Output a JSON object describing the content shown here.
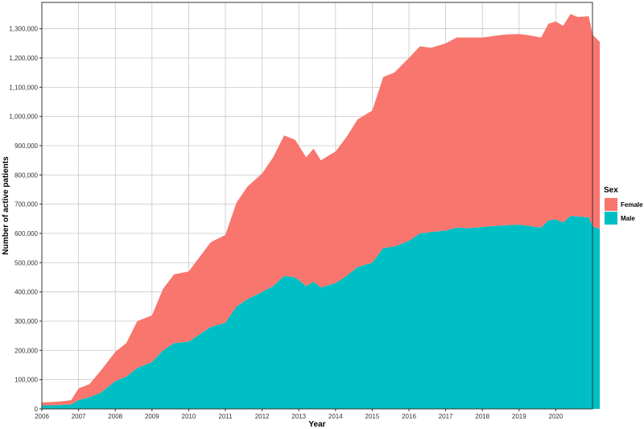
{
  "chart_data": {
    "type": "area",
    "stacked": true,
    "xlabel": "Year",
    "ylabel": "Number of active patients",
    "xlim": [
      2006,
      2021
    ],
    "ylim": [
      0,
      1390000
    ],
    "x_ticks": [
      2006,
      2007,
      2008,
      2009,
      2010,
      2011,
      2012,
      2013,
      2014,
      2015,
      2016,
      2017,
      2018,
      2019,
      2020
    ],
    "y_ticks": [
      0,
      100000,
      200000,
      300000,
      400000,
      500000,
      600000,
      700000,
      800000,
      900000,
      1000000,
      1100000,
      1200000,
      1300000
    ],
    "y_tick_labels": [
      "0",
      "100,000",
      "200,000",
      "300,000",
      "400,000",
      "500,000",
      "600,000",
      "700,000",
      "800,000",
      "900,000",
      "1,000,000",
      "1,100,000",
      "1,200,000",
      "1,300,000"
    ],
    "grid": true,
    "legend": {
      "title": "Sex",
      "position": "right"
    },
    "series": [
      {
        "name": "Male",
        "color": "#00BFC4",
        "points": [
          [
            2006.0,
            12000
          ],
          [
            2006.5,
            13000
          ],
          [
            2006.8,
            15000
          ],
          [
            2007.0,
            30000
          ],
          [
            2007.3,
            40000
          ],
          [
            2007.6,
            55000
          ],
          [
            2008.0,
            95000
          ],
          [
            2008.3,
            110000
          ],
          [
            2008.6,
            140000
          ],
          [
            2009.0,
            160000
          ],
          [
            2009.3,
            200000
          ],
          [
            2009.6,
            225000
          ],
          [
            2010.0,
            230000
          ],
          [
            2010.3,
            255000
          ],
          [
            2010.6,
            280000
          ],
          [
            2011.0,
            295000
          ],
          [
            2011.3,
            350000
          ],
          [
            2011.6,
            375000
          ],
          [
            2012.0,
            400000
          ],
          [
            2012.3,
            420000
          ],
          [
            2012.6,
            455000
          ],
          [
            2012.9,
            450000
          ],
          [
            2013.2,
            420000
          ],
          [
            2013.4,
            435000
          ],
          [
            2013.6,
            415000
          ],
          [
            2014.0,
            430000
          ],
          [
            2014.3,
            455000
          ],
          [
            2014.6,
            485000
          ],
          [
            2015.0,
            500000
          ],
          [
            2015.3,
            550000
          ],
          [
            2015.6,
            555000
          ],
          [
            2016.0,
            575000
          ],
          [
            2016.3,
            600000
          ],
          [
            2016.6,
            605000
          ],
          [
            2017.0,
            610000
          ],
          [
            2017.3,
            620000
          ],
          [
            2017.6,
            618000
          ],
          [
            2018.0,
            622000
          ],
          [
            2018.3,
            625000
          ],
          [
            2018.6,
            628000
          ],
          [
            2019.0,
            630000
          ],
          [
            2019.3,
            625000
          ],
          [
            2019.6,
            620000
          ],
          [
            2019.8,
            645000
          ],
          [
            2020.0,
            648000
          ],
          [
            2020.2,
            638000
          ],
          [
            2020.4,
            660000
          ],
          [
            2020.6,
            658000
          ],
          [
            2020.9,
            655000
          ],
          [
            2021.0,
            625000
          ],
          [
            2021.2,
            615000
          ]
        ]
      },
      {
        "name": "Female",
        "color": "#F8766D",
        "points": [
          [
            2006.0,
            10000
          ],
          [
            2006.5,
            12000
          ],
          [
            2006.8,
            15000
          ],
          [
            2007.0,
            40000
          ],
          [
            2007.3,
            45000
          ],
          [
            2007.6,
            75000
          ],
          [
            2008.0,
            100000
          ],
          [
            2008.3,
            115000
          ],
          [
            2008.6,
            160000
          ],
          [
            2009.0,
            160000
          ],
          [
            2009.3,
            210000
          ],
          [
            2009.6,
            235000
          ],
          [
            2010.0,
            240000
          ],
          [
            2010.3,
            265000
          ],
          [
            2010.6,
            290000
          ],
          [
            2011.0,
            300000
          ],
          [
            2011.3,
            355000
          ],
          [
            2011.6,
            385000
          ],
          [
            2012.0,
            405000
          ],
          [
            2012.3,
            440000
          ],
          [
            2012.6,
            480000
          ],
          [
            2012.9,
            470000
          ],
          [
            2013.2,
            440000
          ],
          [
            2013.4,
            455000
          ],
          [
            2013.6,
            435000
          ],
          [
            2014.0,
            450000
          ],
          [
            2014.3,
            475000
          ],
          [
            2014.6,
            505000
          ],
          [
            2015.0,
            520000
          ],
          [
            2015.3,
            585000
          ],
          [
            2015.6,
            595000
          ],
          [
            2016.0,
            625000
          ],
          [
            2016.3,
            640000
          ],
          [
            2016.6,
            630000
          ],
          [
            2017.0,
            640000
          ],
          [
            2017.3,
            650000
          ],
          [
            2017.6,
            652000
          ],
          [
            2018.0,
            648000
          ],
          [
            2018.3,
            650000
          ],
          [
            2018.6,
            652000
          ],
          [
            2019.0,
            652000
          ],
          [
            2019.3,
            652000
          ],
          [
            2019.6,
            650000
          ],
          [
            2019.8,
            672000
          ],
          [
            2020.0,
            677000
          ],
          [
            2020.2,
            672000
          ],
          [
            2020.4,
            690000
          ],
          [
            2020.6,
            682000
          ],
          [
            2020.9,
            688000
          ],
          [
            2021.0,
            655000
          ],
          [
            2021.2,
            640000
          ]
        ]
      }
    ]
  }
}
